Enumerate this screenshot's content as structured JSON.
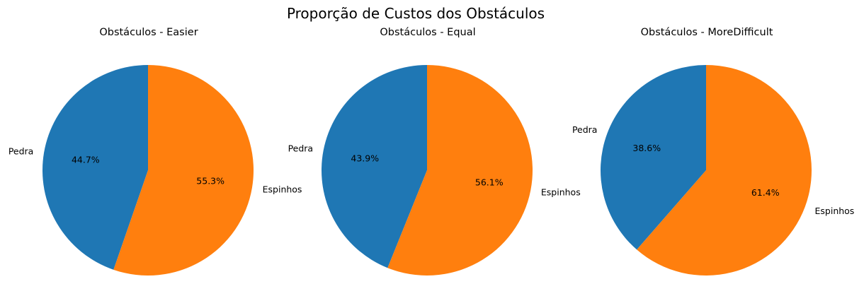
{
  "figure": {
    "title": "Proporção de Custos dos Obstáculos"
  },
  "colors": {
    "Pedra": "#1f77b4",
    "Espinhos": "#ff7f0e"
  },
  "chart_data": [
    {
      "type": "pie",
      "title": "Obstáculos - Easier",
      "start_angle_deg": 90,
      "direction": "counterclockwise",
      "categories": [
        "Pedra",
        "Espinhos"
      ],
      "values": [
        44.7,
        55.3
      ],
      "labels": [
        "44.7%",
        "55.3%"
      ]
    },
    {
      "type": "pie",
      "title": "Obstáculos - Equal",
      "start_angle_deg": 90,
      "direction": "counterclockwise",
      "categories": [
        "Pedra",
        "Espinhos"
      ],
      "values": [
        43.9,
        56.1
      ],
      "labels": [
        "43.9%",
        "56.1%"
      ]
    },
    {
      "type": "pie",
      "title": "Obstáculos - MoreDifficult",
      "start_angle_deg": 90,
      "direction": "counterclockwise",
      "categories": [
        "Pedra",
        "Espinhos"
      ],
      "values": [
        38.6,
        61.4
      ],
      "labels": [
        "38.6%",
        "61.4%"
      ]
    }
  ]
}
